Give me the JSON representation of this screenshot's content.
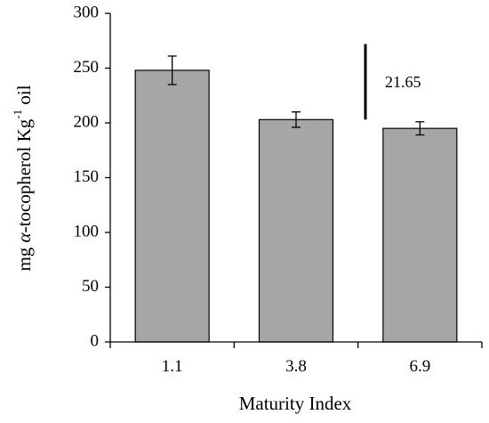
{
  "chart_data": {
    "type": "bar",
    "categories": [
      "1.1",
      "3.8",
      "6.9"
    ],
    "values": [
      248,
      203,
      195
    ],
    "error": [
      13,
      7,
      6
    ],
    "xlabel": "Maturity Index",
    "ylabel": {
      "prefix": "mg ",
      "italic": "α",
      "middle": "-tocopherol Kg",
      "superscript": "-1",
      "suffix": " oil"
    },
    "ylim": [
      0,
      300
    ],
    "yticks": [
      "0",
      "50",
      "100",
      "150",
      "200",
      "250",
      "300"
    ],
    "grid": false,
    "legend": "none",
    "bar_color": "#a6a6a6",
    "annotation": {
      "text": "21.65",
      "y_top": 272,
      "y_bottom": 203
    }
  }
}
